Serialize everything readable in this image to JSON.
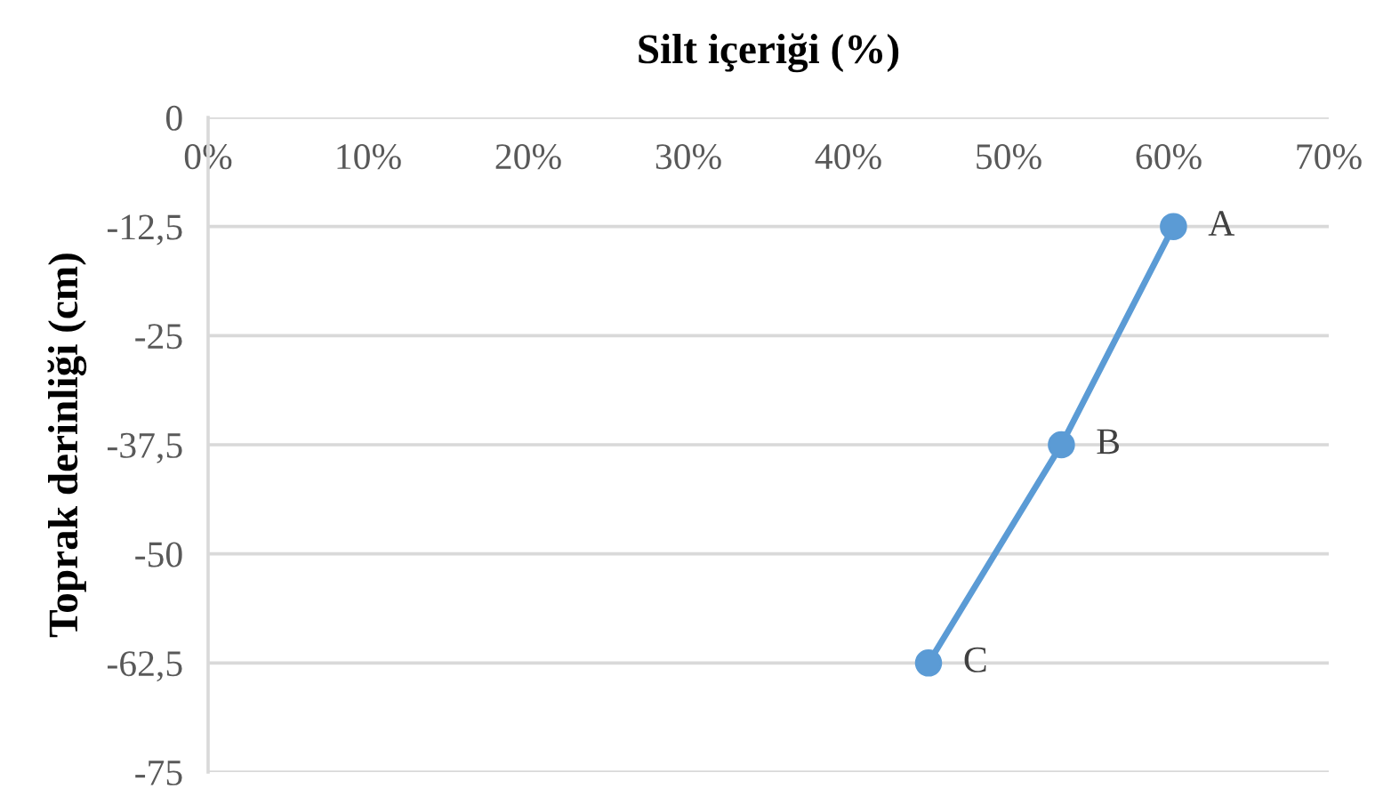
{
  "chart_data": {
    "type": "line",
    "xlabel": "Silt içeriği (%)",
    "ylabel": "Toprak derinliği (cm)",
    "x": [
      60.3,
      53.3,
      45.0
    ],
    "series": [
      {
        "color": "#5b9bd5",
        "values": [
          -12.5,
          -37.5,
          -62.5
        ]
      }
    ],
    "xlim": [
      0,
      70
    ],
    "xticks": [
      {
        "value": 0,
        "label": "0%"
      },
      {
        "value": 10,
        "label": "10%"
      },
      {
        "value": 20,
        "label": "20%"
      },
      {
        "value": 30,
        "label": "30%"
      },
      {
        "value": 40,
        "label": "40%"
      },
      {
        "value": 50,
        "label": "50%"
      },
      {
        "value": 60,
        "label": "60%"
      },
      {
        "value": 70,
        "label": "70%"
      }
    ],
    "ylim": [
      -75,
      0
    ],
    "yticks": [
      0,
      {
        "value": -12.5,
        "label": "-12,5"
      },
      -25,
      {
        "value": -37.5,
        "label": "-37,5"
      },
      -50,
      {
        "value": -62.5,
        "label": "-62,5"
      },
      -75
    ],
    "grid": "y",
    "marker": "circle",
    "line_style": "solid",
    "annotations": [
      {
        "text": "A",
        "x": 60.3,
        "y": -12.5
      },
      {
        "text": "B",
        "x": 53.3,
        "y": -37.5
      },
      {
        "text": "C",
        "x": 45.0,
        "y": -62.5
      }
    ]
  }
}
